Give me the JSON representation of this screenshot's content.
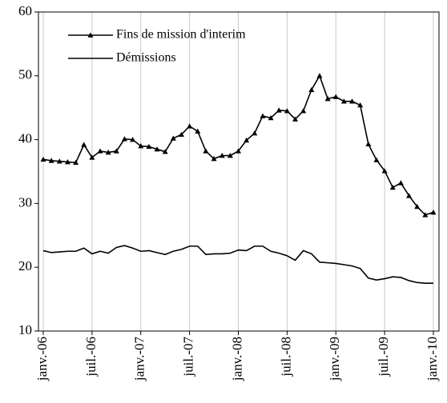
{
  "chart_data": {
    "type": "line",
    "categories": [
      "janv.-06",
      null,
      null,
      null,
      null,
      null,
      "juil.-06",
      null,
      null,
      null,
      null,
      null,
      "janv.-07",
      null,
      null,
      null,
      null,
      null,
      "juil.-07",
      null,
      null,
      null,
      null,
      null,
      "janv.-08",
      null,
      null,
      null,
      null,
      null,
      "juil.-08",
      null,
      null,
      null,
      null,
      null,
      "janv.-09",
      null,
      null,
      null,
      null,
      null,
      "juil.-09",
      null,
      null,
      null,
      null,
      null,
      "janv.-10"
    ],
    "series": [
      {
        "name": "Fins de mission d'interim",
        "color": "#000000",
        "marker": "triangle",
        "values": [
          36.9,
          36.7,
          36.6,
          36.5,
          36.4,
          39.2,
          37.2,
          38.2,
          38.0,
          38.2,
          40.1,
          40.0,
          39.0,
          38.9,
          38.5,
          38.1,
          40.2,
          40.8,
          42.1,
          41.3,
          38.2,
          37.0,
          37.5,
          37.5,
          38.2,
          39.9,
          41.0,
          43.7,
          43.4,
          44.6,
          44.5,
          43.2,
          44.5,
          47.8,
          50.0,
          46.4,
          46.7,
          46.0,
          46.0,
          45.4,
          39.3,
          36.8,
          35.1,
          32.5,
          33.2,
          31.2,
          29.5,
          28.2,
          28.6
        ]
      },
      {
        "name": "Démissions",
        "color": "#000000",
        "marker": "none",
        "values": [
          22.6,
          22.3,
          22.4,
          22.5,
          22.5,
          23.0,
          22.1,
          22.5,
          22.2,
          23.1,
          23.4,
          23.0,
          22.5,
          22.6,
          22.3,
          22.0,
          22.5,
          22.8,
          23.3,
          23.3,
          22.0,
          22.1,
          22.1,
          22.2,
          22.7,
          22.6,
          23.3,
          23.3,
          22.5,
          22.2,
          21.8,
          21.1,
          22.6,
          22.1,
          20.8,
          20.7,
          20.6,
          20.4,
          20.2,
          19.8,
          18.3,
          18.0,
          18.2,
          18.5,
          18.4,
          17.9,
          17.6,
          17.5,
          17.5
        ]
      }
    ],
    "ylim": [
      10,
      60
    ],
    "yticks": [
      10,
      20,
      30,
      40,
      50,
      60
    ],
    "xgrid": true,
    "legend": "upper left"
  }
}
